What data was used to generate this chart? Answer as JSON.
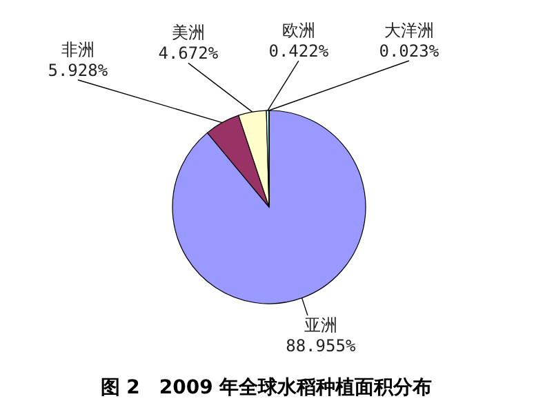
{
  "chart_data": {
    "type": "pie",
    "title": "图 2　2009 年全球水稻种植面积分布",
    "categories": [
      "亚洲",
      "非洲",
      "美洲",
      "欧洲",
      "大洋洲"
    ],
    "values": [
      88.955,
      5.928,
      4.672,
      0.422,
      0.023
    ],
    "value_labels": [
      "88.955%",
      "5.928%",
      "4.672%",
      "0.422%",
      "0.023%"
    ],
    "colors": [
      "#9999ff",
      "#993366",
      "#ffffcc",
      "#ccffff",
      "#99ccff"
    ]
  }
}
